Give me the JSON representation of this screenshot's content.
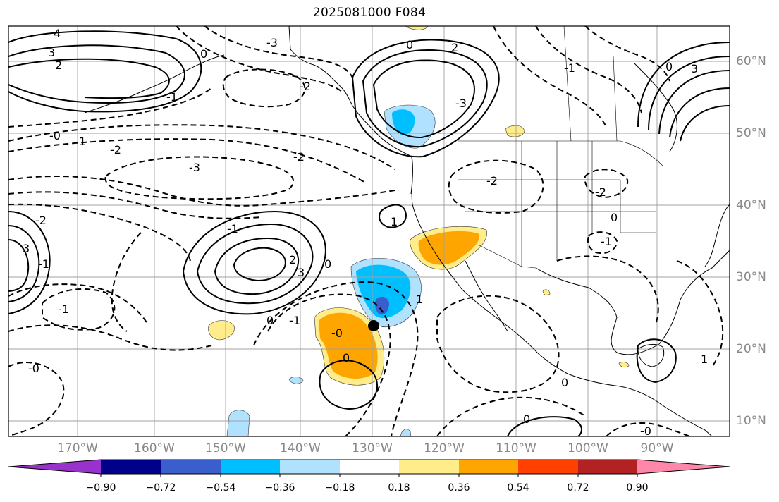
{
  "title": "2025081000 F084",
  "map": {
    "lon_labels": [
      "170°W",
      "160°W",
      "150°W",
      "140°W",
      "130°W",
      "120°W",
      "110°W",
      "100°W",
      "90°W"
    ],
    "lat_labels": [
      "60°N",
      "50°N",
      "40°N",
      "30°N",
      "20°N",
      "10°N"
    ],
    "gridline_color": "#a0a0a0",
    "storm_marker": {
      "color": "#000000"
    },
    "contour_labels": [
      "4",
      "3",
      "2",
      "0",
      "-3",
      "-2",
      "-1",
      "0",
      "2",
      "-0",
      "1",
      "-2",
      "-3",
      "-2",
      "-3",
      "3",
      "0",
      "-1",
      "-2",
      "-2",
      "0",
      "-1",
      "-2",
      "3",
      "-1",
      "-1",
      "2",
      "3",
      "1",
      "-1",
      "0",
      "-0",
      "1",
      "0",
      "0",
      "-0",
      "0",
      "0",
      "-1",
      "1",
      "-0"
    ]
  },
  "colorbar": {
    "colors": [
      "#9932cc",
      "#00008b",
      "#3a5fcd",
      "#00bfff",
      "#b0e2ff",
      "#ffffff",
      "#ffec8b",
      "#ffa500",
      "#ff4000",
      "#b22222",
      "#ff88aa"
    ],
    "tick_labels": [
      "−0.90",
      "−0.72",
      "−0.54",
      "−0.36",
      "−0.18",
      "0.18",
      "0.36",
      "0.54",
      "0.72",
      "0.90"
    ]
  }
}
